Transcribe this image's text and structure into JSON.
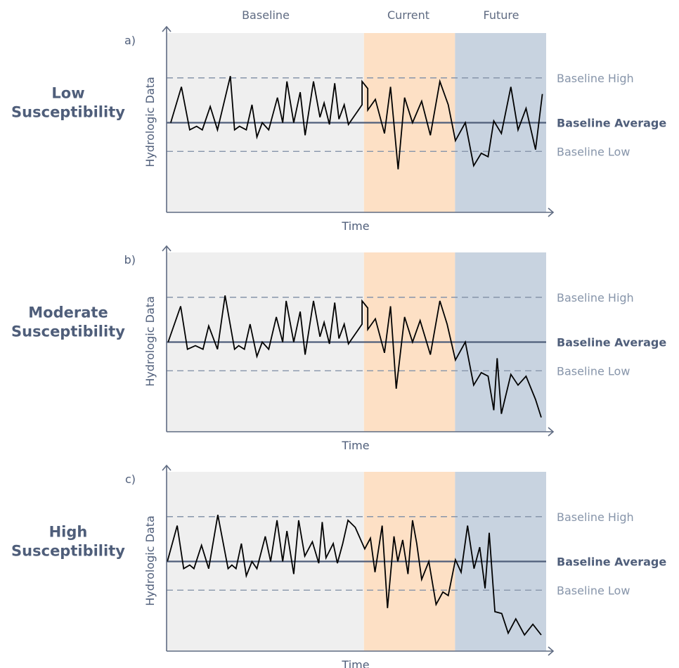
{
  "colors": {
    "baseline_bg": "#efefef",
    "current_bg": "#fde0c5",
    "future_bg": "#c8d3e0",
    "axis": "#5f6b82",
    "avg_line": "#4f5e7a",
    "dashed": "#8795aa",
    "label_light": "#8795aa",
    "label_dark": "#4f5e7a",
    "series": "#000000"
  },
  "period_labels": [
    "Baseline",
    "Current",
    "Future"
  ],
  "chart_data": [
    {
      "type": "line",
      "panel": "a)",
      "row_label": [
        "Low",
        "Susceptibility"
      ],
      "xlabel": "Time",
      "ylabel": "Hydrologic Data",
      "xlim": [
        0,
        100
      ],
      "ylim": [
        0,
        10
      ],
      "period_bounds": [
        0,
        52,
        76,
        100
      ],
      "reference_lines": [
        {
          "name": "Baseline High",
          "value": 7.5,
          "style": "dashed"
        },
        {
          "name": "Baseline Average",
          "value": 5.0,
          "style": "solid"
        },
        {
          "name": "Baseline Low",
          "value": 3.4,
          "style": "dashed"
        }
      ],
      "series": [
        {
          "x": [
            1.1,
            3.9,
            6.1,
            7.9,
            9.4,
            11.5,
            13.4,
            16.8,
            17.9,
            19.2,
            21.0,
            22.5,
            23.8,
            25.2,
            26.9,
            29.2,
            30.6,
            31.7,
            33.5,
            35.2,
            36.5,
            38.7,
            40.4,
            41.5,
            42.9,
            44.3,
            45.4,
            46.8,
            47.9,
            51.5,
            51.5,
            53.0,
            53.0,
            55.0,
            57.4,
            59.0,
            61.0,
            62.7,
            64.8,
            67.2,
            69.5,
            72.0,
            74.2,
            76.1,
            78.7,
            80.9,
            82.9,
            84.7,
            86.2,
            88.2,
            90.7,
            92.6,
            94.7,
            97.2,
            99.0
          ],
          "y": [
            5.0,
            7.0,
            4.6,
            4.8,
            4.6,
            5.9,
            4.6,
            7.6,
            4.6,
            4.8,
            4.6,
            6.0,
            4.2,
            5.0,
            4.6,
            6.4,
            5.0,
            7.3,
            5.0,
            6.7,
            4.3,
            7.3,
            5.3,
            6.1,
            4.9,
            7.2,
            5.2,
            6.0,
            4.9,
            6.0,
            7.3,
            6.9,
            5.7,
            6.3,
            4.4,
            7.0,
            2.4,
            6.4,
            5.0,
            6.2,
            4.3,
            7.3,
            6.0,
            4.0,
            5.0,
            2.6,
            3.3,
            3.1,
            5.1,
            4.4,
            7.0,
            4.6,
            5.8,
            3.5,
            6.6
          ]
        }
      ]
    },
    {
      "type": "line",
      "panel": "b)",
      "row_label": [
        "Moderate",
        "Susceptibility"
      ],
      "xlabel": "Time",
      "ylabel": "Hydrologic Data",
      "xlim": [
        0,
        100
      ],
      "ylim": [
        0,
        10
      ],
      "period_bounds": [
        0,
        52,
        76,
        100
      ],
      "reference_lines": [
        {
          "name": "Baseline High",
          "value": 7.5,
          "style": "dashed"
        },
        {
          "name": "Baseline Average",
          "value": 5.0,
          "style": "solid"
        },
        {
          "name": "Baseline Low",
          "value": 3.4,
          "style": "dashed"
        }
      ],
      "series": [
        {
          "x": [
            0.4,
            3.7,
            5.5,
            7.6,
            9.6,
            11.1,
            13.4,
            15.4,
            17.9,
            19.0,
            20.5,
            22.0,
            23.8,
            25.2,
            26.9,
            28.9,
            30.6,
            31.5,
            33.5,
            35.2,
            36.5,
            38.7,
            40.4,
            41.5,
            42.9,
            44.3,
            45.4,
            46.8,
            47.9,
            51.5,
            51.5,
            53.0,
            53.0,
            55.0,
            57.4,
            59.0,
            60.5,
            62.7,
            64.8,
            66.8,
            69.5,
            72.0,
            73.9,
            76.1,
            78.7,
            80.9,
            82.9,
            84.7,
            86.2,
            87.1,
            88.2,
            90.7,
            92.6,
            94.7,
            97.2,
            98.7
          ],
          "y": [
            5.0,
            7.0,
            4.6,
            4.8,
            4.6,
            5.9,
            4.6,
            7.6,
            4.6,
            4.8,
            4.6,
            6.0,
            4.2,
            5.0,
            4.6,
            6.4,
            5.0,
            7.3,
            5.0,
            6.7,
            4.3,
            7.3,
            5.3,
            6.1,
            4.9,
            7.2,
            5.2,
            6.0,
            4.9,
            6.0,
            7.3,
            6.9,
            5.7,
            6.3,
            4.4,
            7.0,
            2.4,
            6.4,
            5.0,
            6.2,
            4.3,
            7.3,
            6.0,
            4.0,
            5.0,
            2.6,
            3.3,
            3.1,
            1.2,
            4.1,
            1.0,
            3.2,
            2.6,
            3.1,
            1.8,
            0.8
          ]
        }
      ]
    },
    {
      "type": "line",
      "panel": "c)",
      "row_label": [
        "High",
        "Susceptibility"
      ],
      "xlabel": "Time",
      "ylabel": "Hydrologic Data",
      "xlim": [
        0,
        100
      ],
      "ylim": [
        0,
        10
      ],
      "period_bounds": [
        0,
        52,
        76,
        100
      ],
      "reference_lines": [
        {
          "name": "Baseline High",
          "value": 7.5,
          "style": "dashed"
        },
        {
          "name": "Baseline Average",
          "value": 5.0,
          "style": "solid"
        },
        {
          "name": "Baseline Low",
          "value": 3.4,
          "style": "dashed"
        }
      ],
      "series": [
        {
          "x": [
            0.2,
            2.8,
            4.5,
            6.1,
            7.2,
            9.2,
            11.1,
            13.5,
            16.2,
            17.2,
            18.3,
            19.7,
            21.0,
            22.5,
            23.8,
            26.0,
            27.4,
            29.1,
            30.6,
            31.7,
            33.5,
            34.8,
            36.4,
            38.4,
            40.1,
            41.0,
            42.0,
            43.9,
            45.0,
            46.4,
            47.8,
            49.7,
            52.2,
            53.7,
            54.9,
            56.8,
            58.2,
            59.9,
            60.9,
            62.2,
            63.6,
            64.8,
            65.9,
            67.2,
            69.1,
            71.0,
            72.8,
            74.2,
            76.1,
            77.6,
            79.3,
            81.0,
            82.5,
            83.9,
            85.0,
            86.5,
            88.3,
            90.0,
            92.0,
            94.3,
            96.5,
            98.7
          ],
          "y": [
            5.0,
            7.0,
            4.6,
            4.8,
            4.6,
            5.9,
            4.6,
            7.6,
            4.6,
            4.8,
            4.6,
            6.0,
            4.2,
            5.0,
            4.6,
            6.4,
            5.0,
            7.3,
            5.0,
            6.7,
            4.3,
            7.3,
            5.3,
            6.1,
            4.9,
            7.2,
            5.2,
            6.0,
            4.9,
            6.0,
            7.3,
            6.9,
            5.7,
            6.3,
            4.4,
            7.0,
            2.4,
            6.4,
            5.0,
            6.2,
            4.3,
            7.3,
            6.0,
            4.0,
            5.0,
            2.6,
            3.3,
            3.1,
            5.1,
            4.4,
            7.0,
            4.6,
            5.8,
            3.5,
            6.6,
            2.2,
            2.1,
            1.0,
            1.8,
            0.9,
            1.5,
            0.9
          ]
        }
      ]
    }
  ]
}
